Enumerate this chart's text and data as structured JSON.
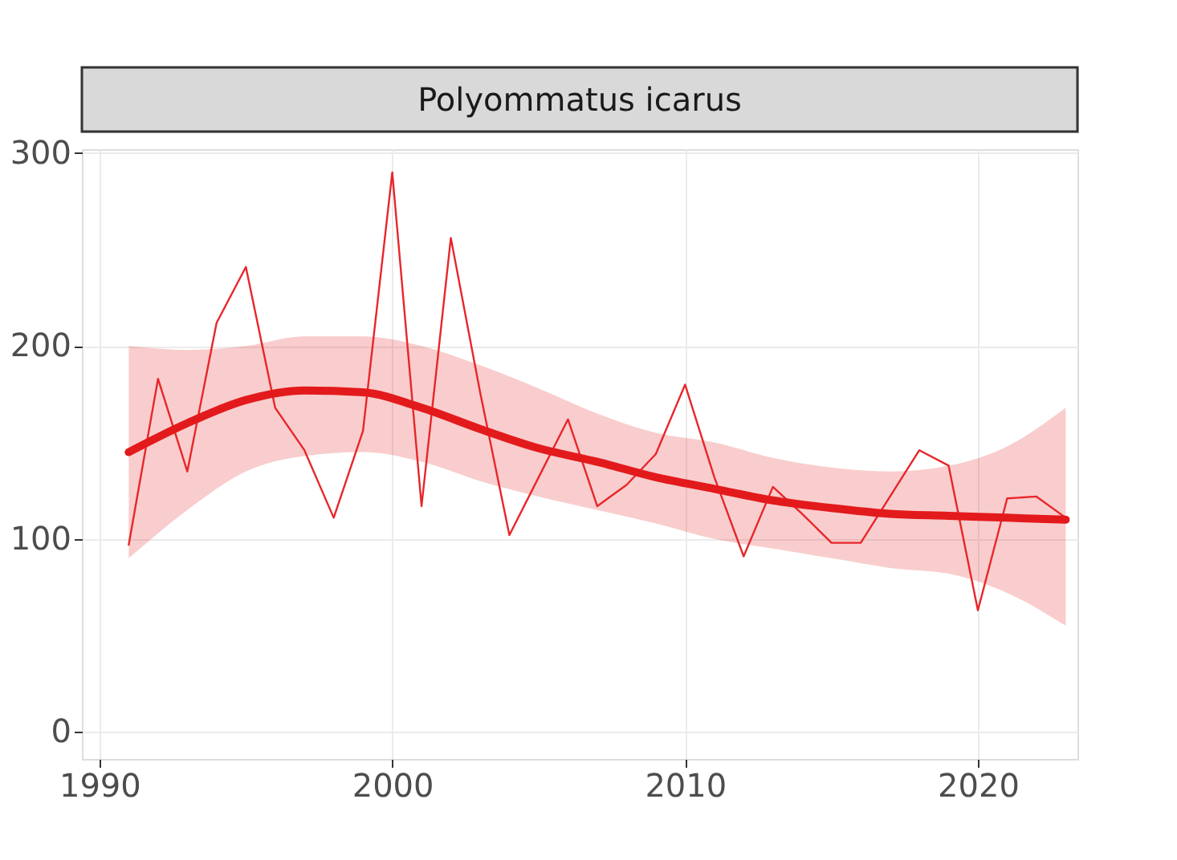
{
  "chart_data": {
    "type": "line",
    "title": "Polyommatus icarus",
    "xlim": [
      1989.4,
      2023.4
    ],
    "xticks": [
      1990,
      2000,
      2010,
      2020
    ],
    "ylim": [
      -14,
      302
    ],
    "yticks": [
      0,
      100,
      200,
      300
    ],
    "grid": true,
    "series": [
      {
        "color": "#e8262a",
        "x": [
          1991,
          1992,
          1993,
          1994,
          1995,
          1996,
          1997,
          1998,
          1999,
          2000,
          2001,
          2002,
          2003,
          2004,
          2005,
          2006,
          2007,
          2008,
          2009,
          2010,
          2011,
          2012,
          2013,
          2014,
          2015,
          2016,
          2017,
          2018,
          2019,
          2020,
          2021,
          2022,
          2023
        ],
        "values": [
          97,
          183,
          135,
          212,
          241,
          168,
          146,
          111,
          156,
          290,
          117,
          256,
          176,
          102,
          132,
          162,
          117,
          128,
          144,
          180,
          132,
          91,
          127,
          113,
          98,
          98,
          122,
          146,
          138,
          63,
          121,
          122,
          111
        ]
      },
      {
        "color": "#e31a1c",
        "x": [
          1991,
          1993,
          1995,
          1997,
          1999,
          2001,
          2003,
          2005,
          2007,
          2009,
          2011,
          2013,
          2015,
          2017,
          2019,
          2021,
          2023
        ],
        "values": [
          145,
          160,
          172,
          177,
          176,
          168,
          157,
          147,
          140,
          132,
          126,
          120,
          116,
          113,
          112,
          111,
          110
        ],
        "lower": [
          90,
          115,
          135,
          143,
          145,
          140,
          130,
          122,
          115,
          108,
          100,
          95,
          90,
          85,
          82,
          72,
          55
        ],
        "upper": [
          200,
          198,
          200,
          205,
          205,
          200,
          190,
          178,
          165,
          155,
          150,
          142,
          137,
          135,
          138,
          148,
          168
        ]
      }
    ]
  }
}
